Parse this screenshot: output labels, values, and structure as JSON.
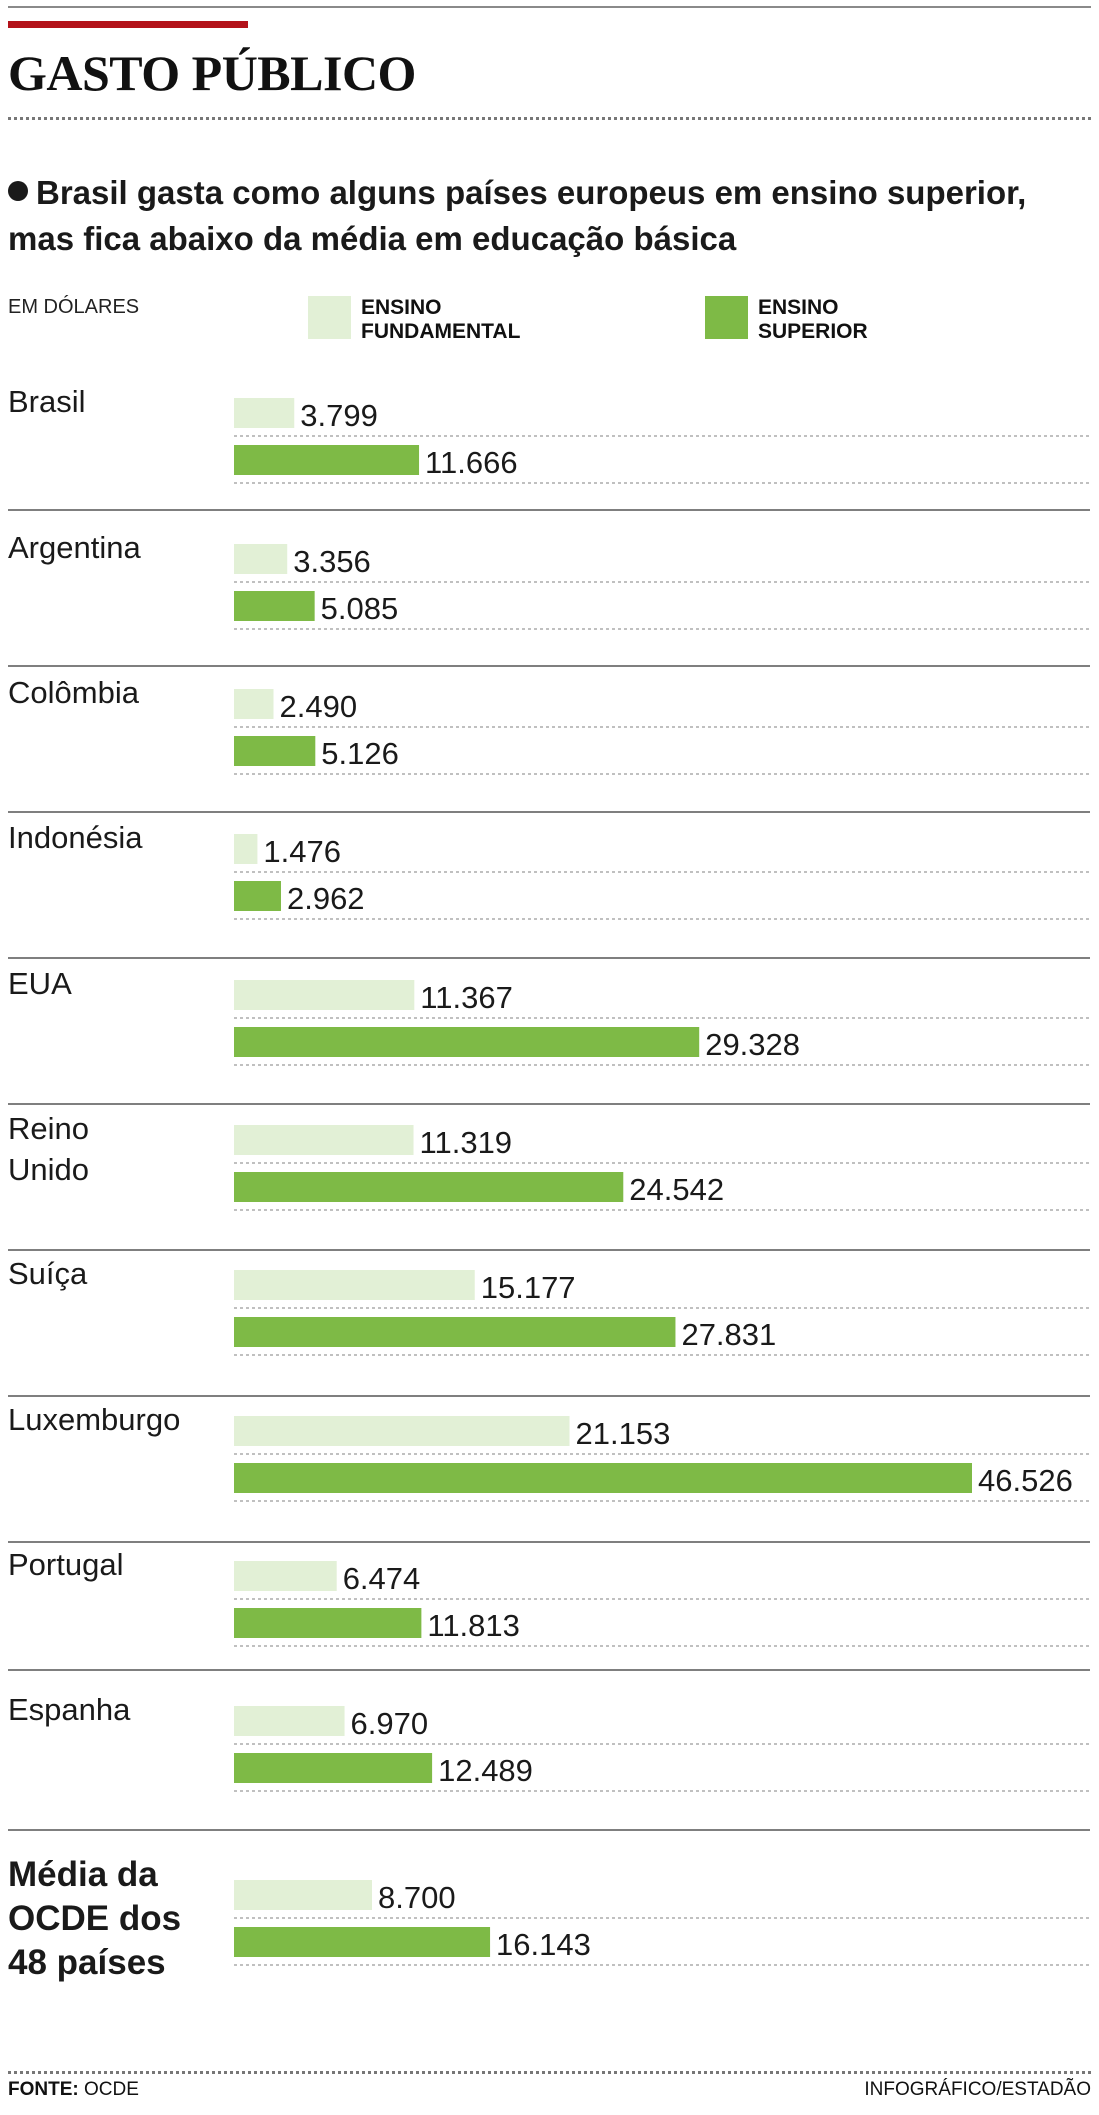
{
  "header": {
    "title": "GASTO PÚBLICO",
    "subtitle": "Brasil gasta como alguns países europeus em ensino superior, mas fica abaixo da média em educação básica"
  },
  "unit_label": "EM DÓLARES",
  "legend": [
    {
      "name": "ENSINO\nFUNDAMENTAL",
      "color": "#e2f0d6"
    },
    {
      "name": "ENSINO\nSUPERIOR",
      "color": "#7eba46"
    }
  ],
  "chart_data": {
    "type": "bar",
    "orientation": "horizontal",
    "unit": "EM DÓLARES",
    "categories": [
      "Brasil",
      "Argentina",
      "Colômbia",
      "Indonésia",
      "EUA",
      "Reino\nUnido",
      "Suíça",
      "Luxemburgo",
      "Portugal",
      "Espanha",
      "Média da\nOCDE dos\n48 países"
    ],
    "series": [
      {
        "name": "ENSINO FUNDAMENTAL",
        "color": "#e2f0d6",
        "values": [
          3799,
          3356,
          2490,
          1476,
          11367,
          11319,
          15177,
          21153,
          6474,
          6970,
          8700
        ],
        "labels": [
          "3.799",
          "3.356",
          "2.490",
          "1.476",
          "11.367",
          "11.319",
          "15.177",
          "21.153",
          "6.474",
          "6.970",
          "8.700"
        ]
      },
      {
        "name": "ENSINO SUPERIOR",
        "color": "#7eba46",
        "values": [
          11666,
          5085,
          5126,
          2962,
          29328,
          24542,
          27831,
          46526,
          11813,
          12489,
          16143
        ],
        "labels": [
          "11.666",
          "5.085",
          "5.126",
          "2.962",
          "29.328",
          "24.542",
          "27.831",
          "46.526",
          "11.813",
          "12.489",
          "16.143"
        ]
      }
    ],
    "xlim": [
      0,
      46526
    ],
    "highlight_last_category": true
  },
  "footer": {
    "source_label": "FONTE:",
    "source": "OCDE",
    "credit": "INFOGRÁFICO/ESTADÃO"
  }
}
